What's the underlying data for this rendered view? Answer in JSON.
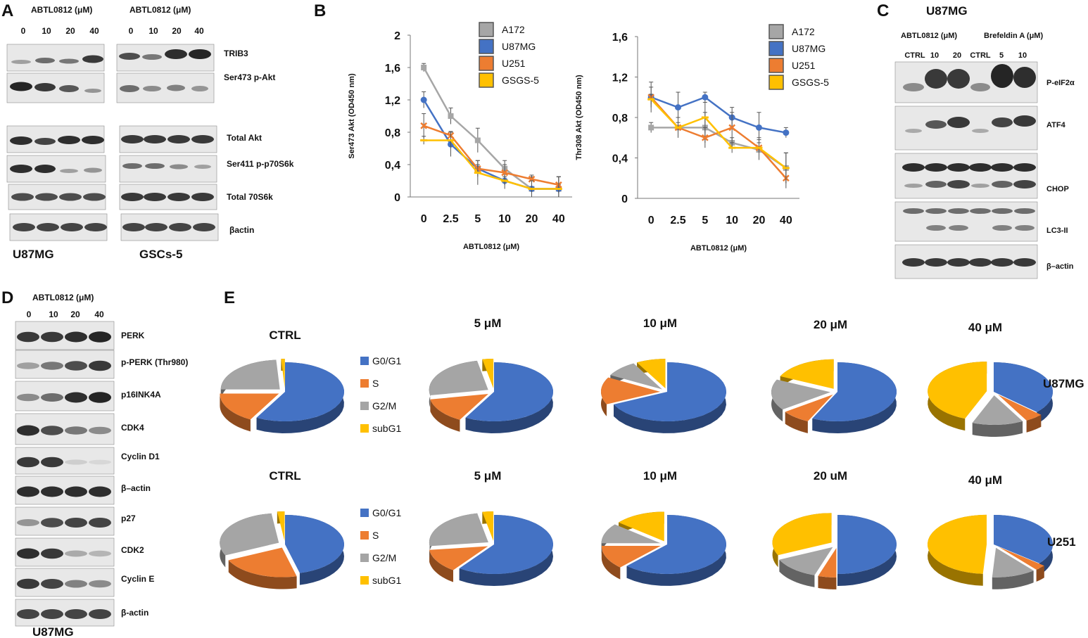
{
  "panels": {
    "A": "A",
    "B": "B",
    "C": "C",
    "D": "D",
    "E": "E"
  },
  "panel_a": {
    "treatment_header": "ABTL0812 (μM)",
    "doses": [
      "0",
      "10",
      "20",
      "40"
    ],
    "proteins": [
      "TRIB3",
      "Ser473 p-Akt",
      "Total Akt",
      "Ser411 p-p70S6k",
      "Total 70S6k",
      "βactin"
    ],
    "cell_lines": [
      "U87MG",
      "GSCs-5"
    ]
  },
  "panel_c": {
    "title": "U87MG",
    "treatment_1": "ABTL0812 (μM)",
    "treatment_2": "Brefeldin A (μM)",
    "lanes": [
      "CTRL",
      "10",
      "20",
      "CTRL",
      "5",
      "10"
    ],
    "proteins": [
      "P-eIF2α",
      "ATF4",
      "CHOP",
      "LC3-II",
      "β–actin"
    ]
  },
  "panel_d": {
    "treatment_header": "ABTL0812 (μM)",
    "doses": [
      "0",
      "10",
      "20",
      "40"
    ],
    "proteins": [
      "PERK",
      "p-PERK (Thr980)",
      "p16INK4A",
      "CDK4",
      "Cyclin D1",
      "β–actin",
      "p27",
      "CDK2",
      "Cyclin E",
      "β-actin"
    ],
    "cell_line": "U87MG"
  },
  "chart_data": [
    {
      "type": "line",
      "title": "",
      "xlabel": "ABTL0812 (μM)",
      "ylabel": "Ser473 Akt (OD450 nm)",
      "categories": [
        "0",
        "2.5",
        "5",
        "10",
        "20",
        "40"
      ],
      "yticks": [
        "0",
        "0,4",
        "0,8",
        "1,2",
        "1,6",
        "2"
      ],
      "ylim": [
        0,
        2
      ],
      "series": [
        {
          "name": "A172",
          "color": "#a6a6a6",
          "values": [
            1.6,
            1.0,
            0.7,
            0.35,
            0.1,
            0.1
          ]
        },
        {
          "name": "U87MG",
          "color": "#4472c4",
          "values": [
            1.2,
            0.65,
            0.35,
            0.2,
            0.1,
            0.1
          ]
        },
        {
          "name": "U251",
          "color": "#ed7d31",
          "values": [
            0.88,
            0.76,
            0.35,
            0.3,
            0.22,
            0.15
          ]
        },
        {
          "name": "GSGS-5",
          "color": "#ffc000",
          "values": [
            0.7,
            0.7,
            0.3,
            0.2,
            0.1,
            0.1
          ]
        }
      ],
      "legend_position": "top-right"
    },
    {
      "type": "line",
      "title": "",
      "xlabel": "ABTL0812 (μM)",
      "ylabel": "Thr308 Akt (OD450 nm)",
      "categories": [
        "0",
        "2.5",
        "5",
        "10",
        "20",
        "40"
      ],
      "yticks": [
        "0",
        "0,4",
        "0,8",
        "1,2",
        "1,6"
      ],
      "ylim": [
        0,
        1.6
      ],
      "series": [
        {
          "name": "A172",
          "color": "#a6a6a6",
          "values": [
            0.7,
            0.7,
            0.7,
            0.55,
            0.48,
            0.3
          ]
        },
        {
          "name": "U87MG",
          "color": "#4472c4",
          "values": [
            1.0,
            0.9,
            1.0,
            0.8,
            0.7,
            0.65
          ]
        },
        {
          "name": "U251",
          "color": "#ed7d31",
          "values": [
            1.0,
            0.7,
            0.6,
            0.7,
            0.5,
            0.2
          ]
        },
        {
          "name": "GSGS-5",
          "color": "#ffc000",
          "values": [
            0.98,
            0.7,
            0.8,
            0.5,
            0.5,
            0.3
          ]
        }
      ],
      "legend_position": "top-right"
    },
    {
      "type": "pie",
      "legend": [
        "G0/G1",
        "S",
        "G2/M",
        "subG1"
      ],
      "colors": [
        "#4472c4",
        "#ed7d31",
        "#a5a5a5",
        "#ffc000"
      ],
      "rows": [
        {
          "cell_line": "U87MG",
          "pies": [
            {
              "label": "CTRL",
              "values": [
                58,
                17,
                24,
                1
              ]
            },
            {
              "label": "5 μM",
              "values": [
                58,
                14,
                25,
                3
              ]
            },
            {
              "label": "10 μM",
              "values": [
                68,
                15,
                9,
                8
              ]
            },
            {
              "label": "20 μM",
              "values": [
                57,
                8,
                17,
                18
              ]
            },
            {
              "label": "40 μM",
              "values": [
                37,
                5,
                14,
                44
              ]
            }
          ]
        },
        {
          "cell_line": "U251",
          "pies": [
            {
              "label": "CTRL",
              "values": [
                46,
                22,
                30,
                2
              ]
            },
            {
              "label": "5 μM",
              "values": [
                60,
                13,
                24,
                3
              ]
            },
            {
              "label": "10 μM",
              "values": [
                62,
                13,
                11,
                14
              ]
            },
            {
              "label": "20 uM",
              "values": [
                50,
                5,
                13,
                32
              ]
            },
            {
              "label": "40 μM",
              "values": [
                36,
                3,
                12,
                49
              ]
            }
          ]
        }
      ]
    }
  ]
}
